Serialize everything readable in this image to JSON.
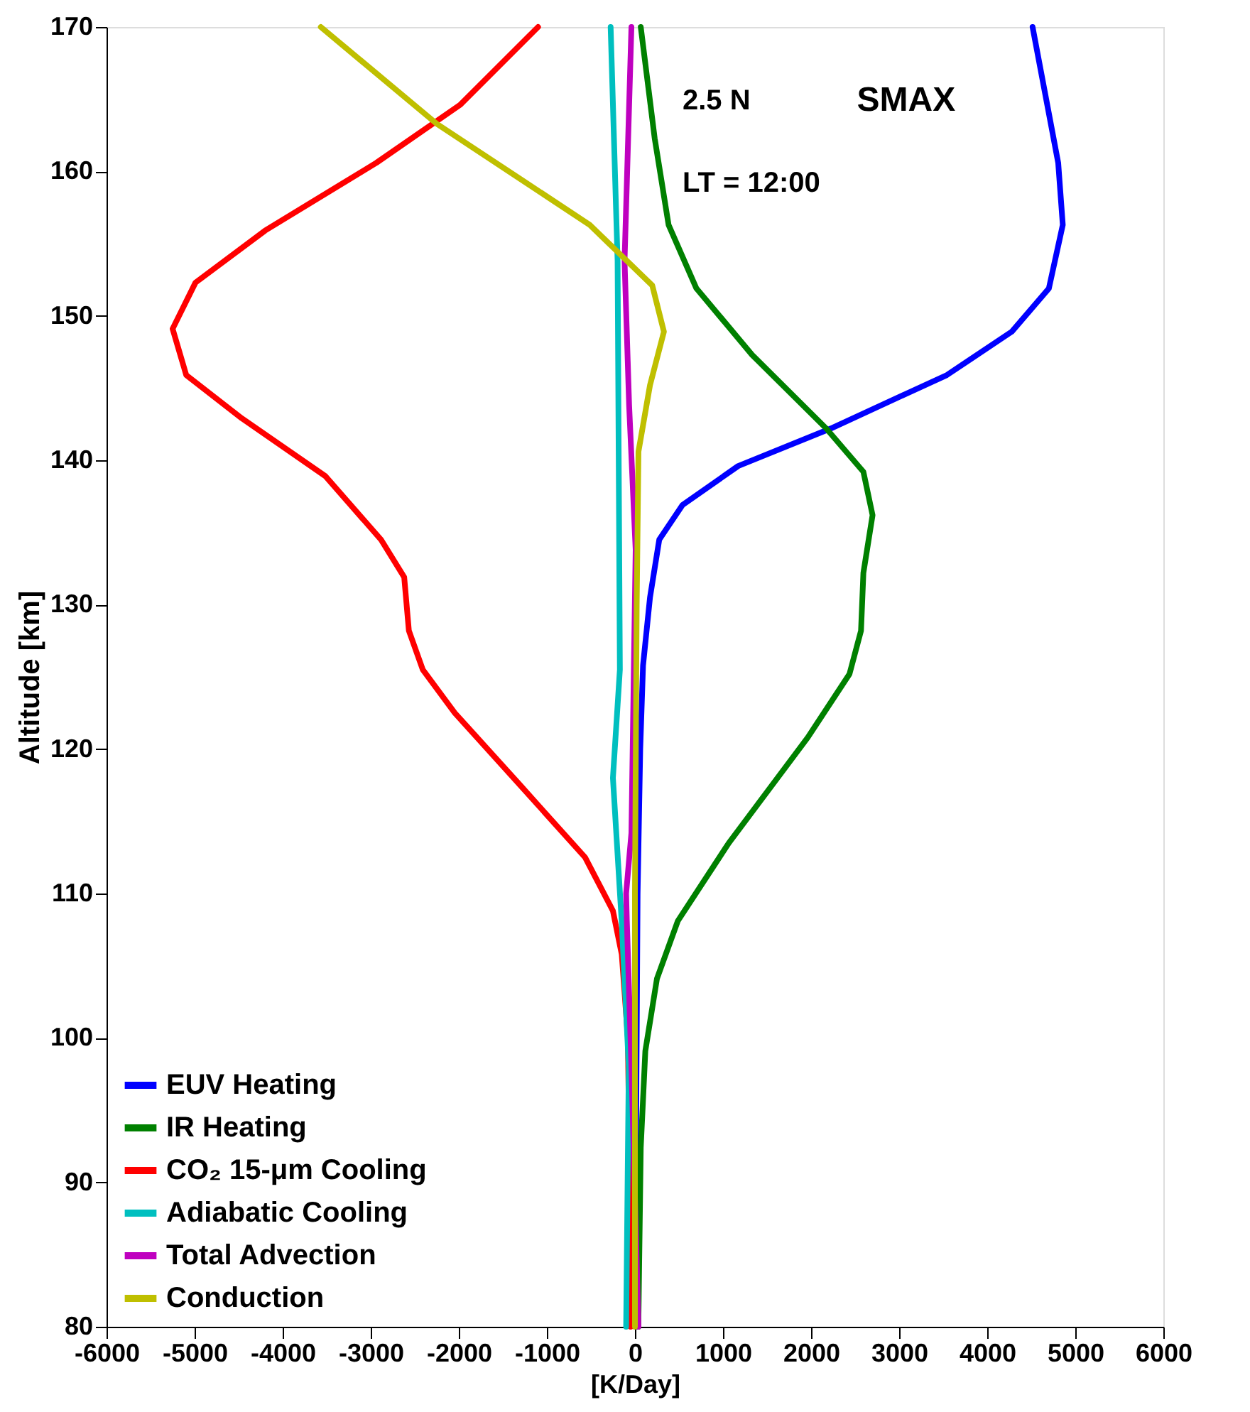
{
  "chart_data": {
    "type": "line",
    "xlabel": "[K/Day]",
    "ylabel": "Altitude [km]",
    "xlim": [
      -6000,
      6000
    ],
    "xticks": [
      -6000,
      -5000,
      -4000,
      -3000,
      -2000,
      -1000,
      0,
      1000,
      2000,
      3000,
      4000,
      5000,
      6000
    ],
    "ylim": [
      80,
      170
    ],
    "yticks": [
      80,
      90,
      100,
      110,
      120,
      130,
      140,
      150,
      160,
      170
    ],
    "grid": false,
    "legend": "bottom left",
    "line_style": "solid",
    "marker": "none",
    "annotations": [
      "2.5 N",
      "SMAX",
      "LT = 12:00"
    ],
    "series": [
      {
        "name": "EUV Heating",
        "color": "#0000ff",
        "x": [
          10,
          10,
          20,
          30,
          60,
          92,
          171,
          276,
          540,
          1172,
          2224,
          3542,
          4278,
          4700,
          4858,
          4806,
          4515
        ],
        "values": [
          80,
          90,
          100,
          110,
          120,
          125.8,
          130.5,
          134.5,
          136.9,
          139.6,
          142.2,
          145.9,
          148.9,
          151.9,
          156.3,
          160.6,
          170
        ]
      },
      {
        "name": "IR Heating",
        "color": "#008000",
        "x": [
          40,
          40,
          66,
          118,
          250,
          487,
          1066,
          1962,
          2436,
          2567,
          2594,
          2698,
          2594,
          2172,
          1330,
          698,
          382,
          224,
          66
        ],
        "values": [
          80,
          80.7,
          92.4,
          99.1,
          104.1,
          108.1,
          113.5,
          120.8,
          125.2,
          128.2,
          132.2,
          136.2,
          139.2,
          142.2,
          147.3,
          151.9,
          156.3,
          162.3,
          170
        ]
      },
      {
        "name": "CO₂ 15-μm Cooling",
        "color": "#ff0000",
        "x": [
          -50,
          -60,
          -80,
          -150,
          -250,
          -566,
          -1303,
          -2045,
          -2409,
          -2567,
          -2620,
          -2883,
          -3515,
          -4463,
          -5095,
          -5250,
          -4990,
          -4200,
          -2935,
          -1987,
          -1100
        ],
        "values": [
          80,
          90,
          100,
          105.8,
          108.8,
          112.5,
          117.5,
          122.5,
          125.5,
          128.2,
          131.9,
          134.5,
          138.9,
          142.9,
          145.9,
          149.1,
          152.3,
          155.9,
          160.6,
          164.6,
          170
        ]
      },
      {
        "name": "Adiabatic Cooling",
        "color": "#00bfbf",
        "x": [
          -100,
          -70,
          -150,
          -250,
          -171,
          -197,
          -276
        ],
        "values": [
          80,
          98,
          108,
          118,
          125.5,
          153.8,
          170
        ]
      },
      {
        "name": "Total Advection",
        "color": "#bf00bf",
        "x": [
          40,
          -40,
          -92,
          -100,
          -40,
          8,
          -66,
          -118,
          -40
        ],
        "values": [
          80,
          98,
          108.1,
          110,
          114.2,
          133.8,
          143.8,
          153.8,
          170
        ]
      },
      {
        "name": "Conduction",
        "color": "#bfbf00",
        "x": [
          0,
          0,
          20,
          40,
          171,
          329,
          197,
          -513,
          -2251,
          -3567
        ],
        "values": [
          80,
          110,
          130,
          140.6,
          145.2,
          148.9,
          152.1,
          156.3,
          163.3,
          170
        ]
      }
    ]
  }
}
